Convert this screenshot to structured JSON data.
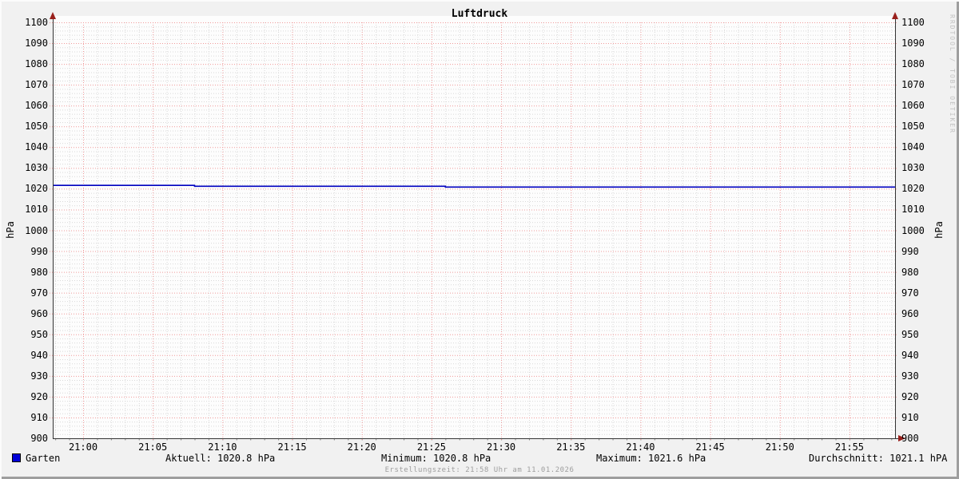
{
  "title": "Luftdruck",
  "watermark": "RRDTOOL / TOBI OETIKER",
  "footer": "Erstellungszeit: 21:58 Uhr am 11.01.2026",
  "axes": {
    "unit_left": "hPa",
    "unit_right": "hPa",
    "y_ticks": [
      "1100",
      "1090",
      "1080",
      "1070",
      "1060",
      "1050",
      "1040",
      "1030",
      "1020",
      "1010",
      "1000",
      "990",
      "980",
      "970",
      "960",
      "950",
      "940",
      "930",
      "920",
      "910",
      "900"
    ],
    "x_ticks": [
      "21:00",
      "21:05",
      "21:10",
      "21:15",
      "21:20",
      "21:25",
      "21:30",
      "21:35",
      "21:40",
      "21:45",
      "21:50",
      "21:55"
    ]
  },
  "legend": {
    "series_label": "Garten",
    "stats": {
      "aktuell": "Aktuell: 1020.8 hPa",
      "minimum": "Minimum: 1020.8 hPa",
      "maximum": "Maximum: 1021.6 hPa",
      "durchschnitt": "Durchschnitt: 1021.1 hPA"
    }
  },
  "colors": {
    "background": "#f1f1f1",
    "canvas": "#fdfdfd",
    "axis": "#333333",
    "arrow": "#99201c",
    "grid_major": "#f09a9a",
    "grid_minor": "#d9d9d9",
    "series": "#0000c0",
    "legend_swatch": "#0000d8"
  },
  "chart_data": {
    "type": "line",
    "title": "Luftdruck",
    "ylabel": "hPa",
    "ylim": [
      900,
      1100
    ],
    "y_major_step": 10,
    "y_minor_step": 2,
    "x_range": [
      "20:58",
      "21:58"
    ],
    "x_major_step_min": 5,
    "x_minor_step_min": 1,
    "x_tick_times": [
      "21:00",
      "21:05",
      "21:10",
      "21:15",
      "21:20",
      "21:25",
      "21:30",
      "21:35",
      "21:40",
      "21:45",
      "21:50",
      "21:55"
    ],
    "grid": true,
    "legend_position": "bottom",
    "series": [
      {
        "name": "Garten",
        "color": "#0000c0",
        "segments": [
          {
            "from": "20:58",
            "to": "21:08",
            "value": 1021.6
          },
          {
            "from": "21:08",
            "to": "21:26",
            "value": 1021.2
          },
          {
            "from": "21:26",
            "to": "21:58",
            "value": 1020.8
          }
        ]
      }
    ],
    "stats": {
      "aktuell": 1020.8,
      "minimum": 1020.8,
      "maximum": 1021.6,
      "durchschnitt": 1021.1,
      "unit": "hPa"
    }
  }
}
